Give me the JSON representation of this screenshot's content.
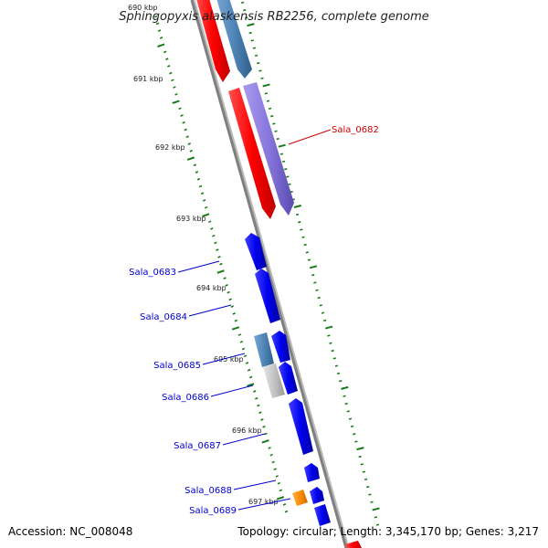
{
  "title": "Sphingopyxis alaskensis RB2256, complete genome",
  "footer": {
    "accession": "Accession: NC_008048",
    "topology": "Topology: circular; Length: 3,345,170 bp; Genes: 3,217"
  },
  "scale_labels": [
    "690 kbp",
    "691 kbp",
    "692 kbp",
    "693 kbp",
    "694 kbp",
    "695 kbp",
    "696 kbp",
    "697 kbp"
  ],
  "gene_labels": [
    {
      "id": "Sala_0682",
      "color": "#cc0000"
    },
    {
      "id": "Sala_0683",
      "color": "#0000cc"
    },
    {
      "id": "Sala_0684",
      "color": "#0000cc"
    },
    {
      "id": "Sala_0685",
      "color": "#0000cc"
    },
    {
      "id": "Sala_0686",
      "color": "#0000cc"
    },
    {
      "id": "Sala_0687",
      "color": "#0000cc"
    },
    {
      "id": "Sala_0688",
      "color": "#0000cc"
    },
    {
      "id": "Sala_0689",
      "color": "#0000cc"
    }
  ],
  "colors": {
    "backbone": "#888888",
    "scale_ticks": "#1a7a1a",
    "red_gene": "#ff0000",
    "blue_gene": "#0000ee",
    "steel_gene": "#4f86b8",
    "purple_gene": "#8877dd",
    "gray_gene": "#c4c4c4",
    "orange_gene": "#ff8c00"
  }
}
